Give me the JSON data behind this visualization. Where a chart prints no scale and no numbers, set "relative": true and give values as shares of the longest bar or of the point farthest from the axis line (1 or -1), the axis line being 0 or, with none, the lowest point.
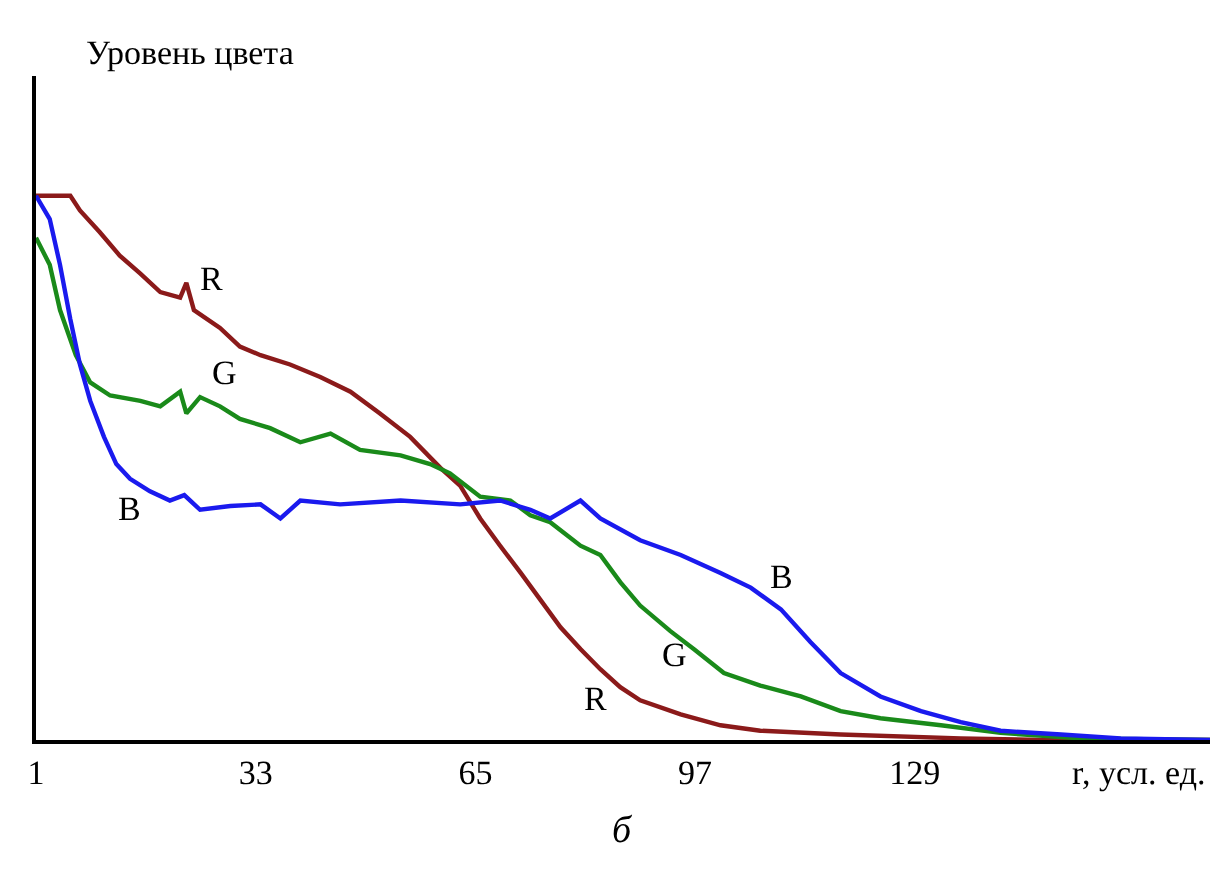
{
  "chart_data": {
    "type": "line",
    "relative": true,
    "ylabel": "Уровень цвета",
    "xlabel": "r, усл. ед.",
    "xlim": [
      1,
      172
    ],
    "xticks": [
      1,
      33,
      65,
      97,
      129
    ],
    "legend": false,
    "marker": "none",
    "line_style": "solid",
    "annotations": [
      "б"
    ],
    "series": [
      {
        "name": "R",
        "color": "#8b1a1a",
        "x": [
          1,
          6,
          7.4,
          10.3,
          13.2,
          16.2,
          19.1,
          22,
          22.9,
          24,
          27.8,
          30.7,
          33.7,
          38,
          42.4,
          46.8,
          51.1,
          55.5,
          59.9,
          62.8,
          65.7,
          68.6,
          71.6,
          74.5,
          77.4,
          80.3,
          83.2,
          86.1,
          89,
          94.9,
          100.7,
          106.5,
          118.2,
          135.7,
          147.4,
          172
        ],
        "values": [
          1,
          1,
          0.973,
          0.933,
          0.89,
          0.857,
          0.823,
          0.813,
          0.84,
          0.79,
          0.757,
          0.723,
          0.707,
          0.69,
          0.667,
          0.64,
          0.6,
          0.557,
          0.5,
          0.467,
          0.407,
          0.357,
          0.307,
          0.257,
          0.207,
          0.167,
          0.13,
          0.097,
          0.073,
          0.047,
          0.027,
          0.017,
          0.01,
          0.003,
          0,
          0
        ]
      },
      {
        "name": "G",
        "color": "#1a8a1a",
        "x": [
          1,
          3,
          4.5,
          6.8,
          8.9,
          11.8,
          16.2,
          19.1,
          22,
          22.9,
          24.9,
          27.8,
          30.7,
          35.1,
          39.5,
          43.9,
          48.2,
          54.1,
          58.4,
          61.3,
          65.7,
          70.1,
          73,
          75.9,
          80.3,
          83.2,
          86.1,
          89,
          93.4,
          96.8,
          101.2,
          106.5,
          112.4,
          118.2,
          124,
          132.8,
          141.5,
          153.2,
          172
        ],
        "values": [
          0.923,
          0.873,
          0.79,
          0.707,
          0.657,
          0.633,
          0.623,
          0.613,
          0.64,
          0.6,
          0.63,
          0.613,
          0.59,
          0.573,
          0.547,
          0.563,
          0.533,
          0.523,
          0.507,
          0.49,
          0.447,
          0.44,
          0.413,
          0.4,
          0.357,
          0.34,
          0.29,
          0.247,
          0.2,
          0.167,
          0.123,
          0.1,
          0.08,
          0.053,
          0.04,
          0.027,
          0.013,
          0.003,
          0
        ]
      },
      {
        "name": "B",
        "color": "#1a1aee",
        "x": [
          1,
          3,
          4.5,
          6,
          7.4,
          8.9,
          10.9,
          12.7,
          14.7,
          17.6,
          20.5,
          22.6,
          24.9,
          29.3,
          33.7,
          36.6,
          39.5,
          45.3,
          54.1,
          62.8,
          68.6,
          73,
          75.9,
          80.3,
          83.2,
          89,
          94.9,
          100.7,
          105.1,
          109.5,
          113.8,
          118.2,
          124,
          129.9,
          135.7,
          141.5,
          150.3,
          159,
          172
        ],
        "values": [
          1,
          0.957,
          0.873,
          0.773,
          0.69,
          0.623,
          0.557,
          0.507,
          0.48,
          0.457,
          0.44,
          0.45,
          0.423,
          0.43,
          0.433,
          0.407,
          0.44,
          0.433,
          0.44,
          0.433,
          0.44,
          0.423,
          0.407,
          0.44,
          0.407,
          0.367,
          0.34,
          0.307,
          0.28,
          0.24,
          0.18,
          0.123,
          0.08,
          0.053,
          0.033,
          0.017,
          0.01,
          0.003,
          0
        ]
      }
    ]
  }
}
